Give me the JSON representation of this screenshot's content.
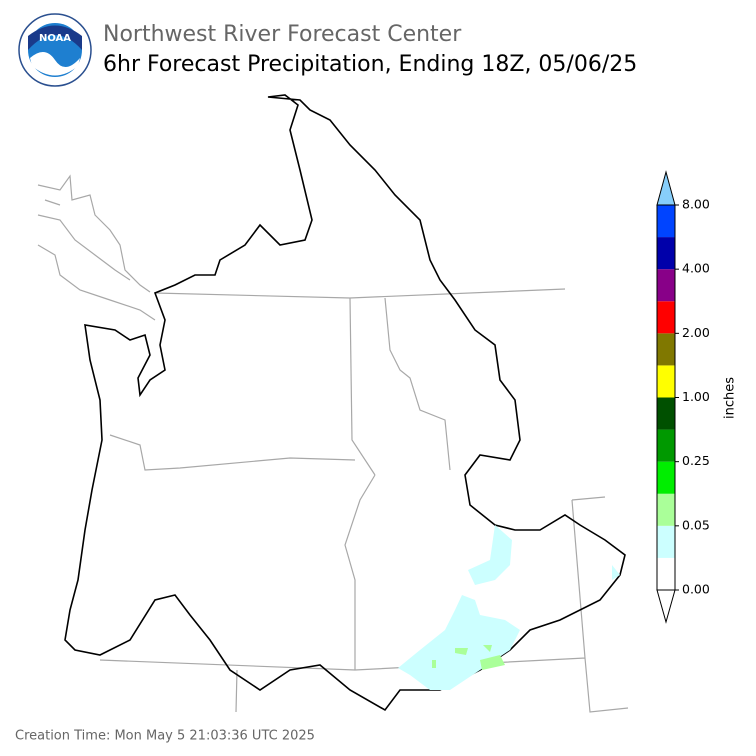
{
  "header": {
    "agency": "Northwest River Forecast Center",
    "title": "6hr Forecast Precipitation, Ending 18Z, 05/06/25"
  },
  "logo": "NOAA",
  "colorbar": {
    "label": "inches",
    "colors": [
      "#ffffff",
      "#ccffff",
      "#aaff99",
      "#00ee00",
      "#009900",
      "#005000",
      "#ffff00",
      "#807800",
      "#ff0000",
      "#880088",
      "#0000aa",
      "#0044ff"
    ],
    "over_color": "#87cefa",
    "under_color": "#ffffff",
    "ticks": [
      {
        "value": 0,
        "label": "0.00"
      },
      {
        "value": 0.05,
        "label": "0.05"
      },
      {
        "value": 0.25,
        "label": "0.25"
      },
      {
        "value": 1,
        "label": "1.00"
      },
      {
        "value": 2,
        "label": "2.00"
      },
      {
        "value": 4,
        "label": "4.00"
      },
      {
        "value": 8,
        "label": "8.00"
      }
    ]
  },
  "footer": "Creation Time: Mon May 5 21:03:36 UTC 2025"
}
